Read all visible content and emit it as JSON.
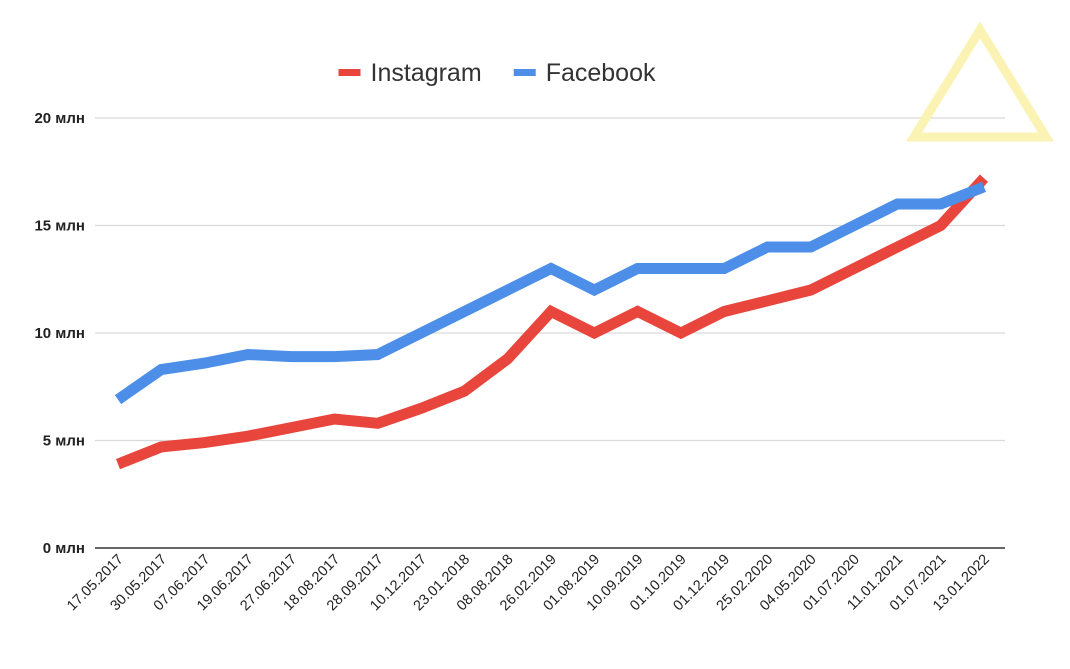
{
  "chart_data": {
    "type": "line",
    "title": "",
    "xlabel": "",
    "ylabel": "",
    "ylim": [
      0,
      20
    ],
    "y_ticks": [
      0,
      5,
      10,
      15,
      20
    ],
    "y_tick_labels": [
      "0 млн",
      "5 млн",
      "10 млн",
      "15 млн",
      "20 млн"
    ],
    "legend_position": "top-center",
    "grid": true,
    "categories": [
      "17.05.2017",
      "30.05.2017",
      "07.06.2017",
      "19.06.2017",
      "27.06.2017",
      "18.08.2017",
      "28.09.2017",
      "10.12.2017",
      "23.01.2018",
      "08.08.2018",
      "26.02.2019",
      "01.08.2019",
      "10.09.2019",
      "01.10.2019",
      "01.12.2019",
      "25.02.2020",
      "04.05.2020",
      "01.07.2020",
      "11.01.2021",
      "01.07.2021",
      "13.01.2022"
    ],
    "series": [
      {
        "name": "Instagram",
        "color": "#e8453c",
        "values": [
          3.9,
          4.7,
          4.9,
          5.2,
          5.6,
          6.0,
          5.8,
          6.5,
          7.3,
          8.8,
          11.0,
          10.0,
          11.0,
          10.0,
          11.0,
          11.5,
          12.0,
          13.0,
          14.0,
          15.0,
          17.2
        ]
      },
      {
        "name": "Facebook",
        "color": "#4d8fe8",
        "values": [
          6.9,
          8.3,
          8.6,
          9.0,
          8.9,
          8.9,
          9.0,
          10.0,
          11.0,
          12.0,
          13.0,
          12.0,
          13.0,
          13.0,
          13.0,
          14.0,
          14.0,
          15.0,
          16.0,
          16.0,
          16.8
        ]
      }
    ]
  },
  "overlay": {
    "shape": "triangle-outline",
    "color": "#fbf3b4"
  }
}
